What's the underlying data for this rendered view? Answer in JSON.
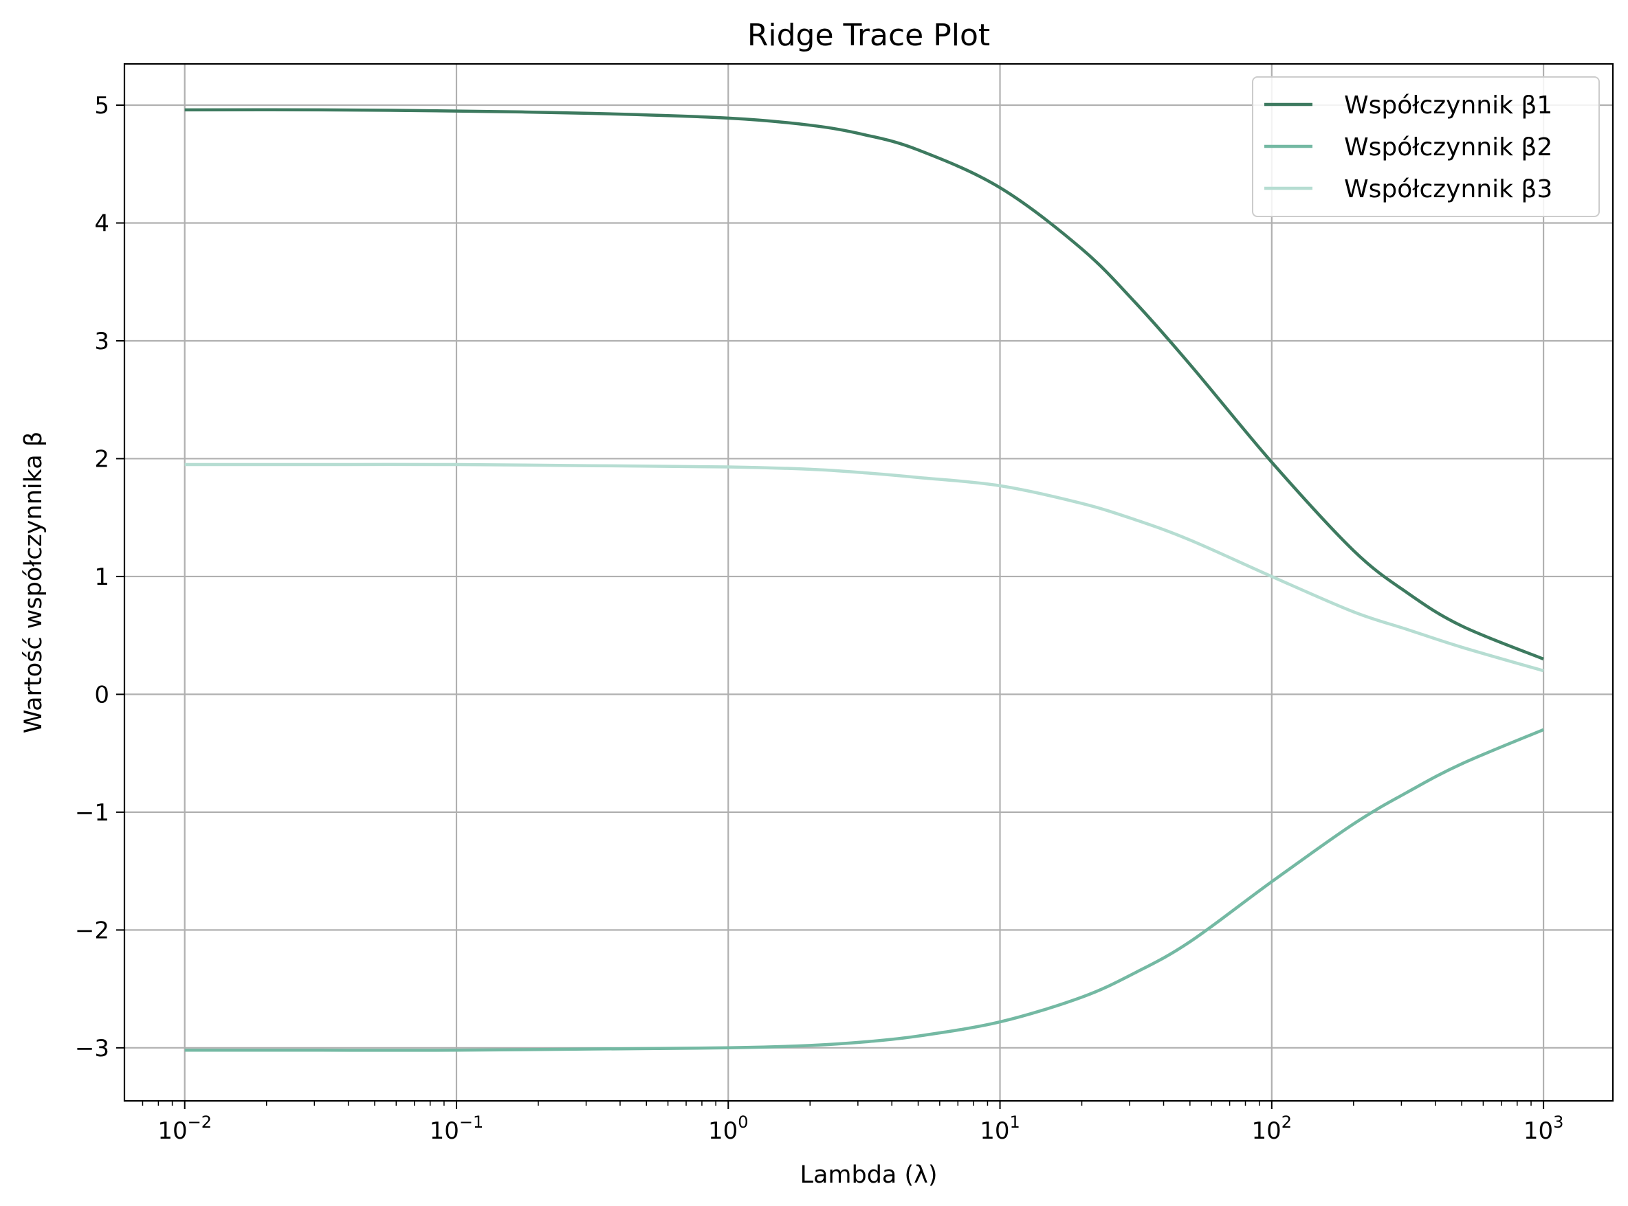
{
  "chart_data": {
    "type": "line",
    "title": "Ridge Trace Plot",
    "xlabel": "Lambda (λ)",
    "ylabel": "Wartość współczynnika β",
    "x_scale": "log",
    "xlim": [
      0.006,
      1800
    ],
    "ylim": [
      -3.45,
      5.35
    ],
    "grid": true,
    "legend_position": "top-right",
    "x_ticks": [
      {
        "value": 0.01,
        "base": "10",
        "exp": "−2"
      },
      {
        "value": 0.1,
        "base": "10",
        "exp": "−1"
      },
      {
        "value": 1,
        "base": "10",
        "exp": "0"
      },
      {
        "value": 10,
        "base": "10",
        "exp": "1"
      },
      {
        "value": 100,
        "base": "10",
        "exp": "2"
      },
      {
        "value": 1000,
        "base": "10",
        "exp": "3"
      }
    ],
    "y_ticks": [
      {
        "value": 5,
        "label": "5"
      },
      {
        "value": 4,
        "label": "4"
      },
      {
        "value": 3,
        "label": "3"
      },
      {
        "value": 2,
        "label": "2"
      },
      {
        "value": 1,
        "label": "1"
      },
      {
        "value": 0,
        "label": "0"
      },
      {
        "value": -1,
        "label": "−1"
      },
      {
        "value": -2,
        "label": "−2"
      },
      {
        "value": -3,
        "label": "−3"
      }
    ],
    "x": [
      0.01,
      0.0316,
      0.1,
      0.316,
      1,
      2,
      3.16,
      5,
      10,
      20,
      31.6,
      50,
      100,
      200,
      316,
      500,
      1000
    ],
    "series": [
      {
        "name": "Współczynnik β1",
        "color": "#3d7a5f",
        "values": [
          4.96,
          4.96,
          4.95,
          4.93,
          4.89,
          4.83,
          4.75,
          4.62,
          4.3,
          3.78,
          3.32,
          2.8,
          1.97,
          1.22,
          0.86,
          0.58,
          0.3
        ]
      },
      {
        "name": "Współczynnik β2",
        "color": "#74b9a3",
        "values": [
          -3.02,
          -3.02,
          -3.02,
          -3.01,
          -3.0,
          -2.98,
          -2.95,
          -2.9,
          -2.78,
          -2.57,
          -2.36,
          -2.1,
          -1.59,
          -1.1,
          -0.83,
          -0.59,
          -0.3
        ]
      },
      {
        "name": "Współczynnik β3",
        "color": "#b6ddd2",
        "values": [
          1.95,
          1.95,
          1.95,
          1.94,
          1.93,
          1.91,
          1.88,
          1.84,
          1.77,
          1.62,
          1.48,
          1.31,
          1.0,
          0.7,
          0.55,
          0.4,
          0.2
        ]
      }
    ]
  }
}
